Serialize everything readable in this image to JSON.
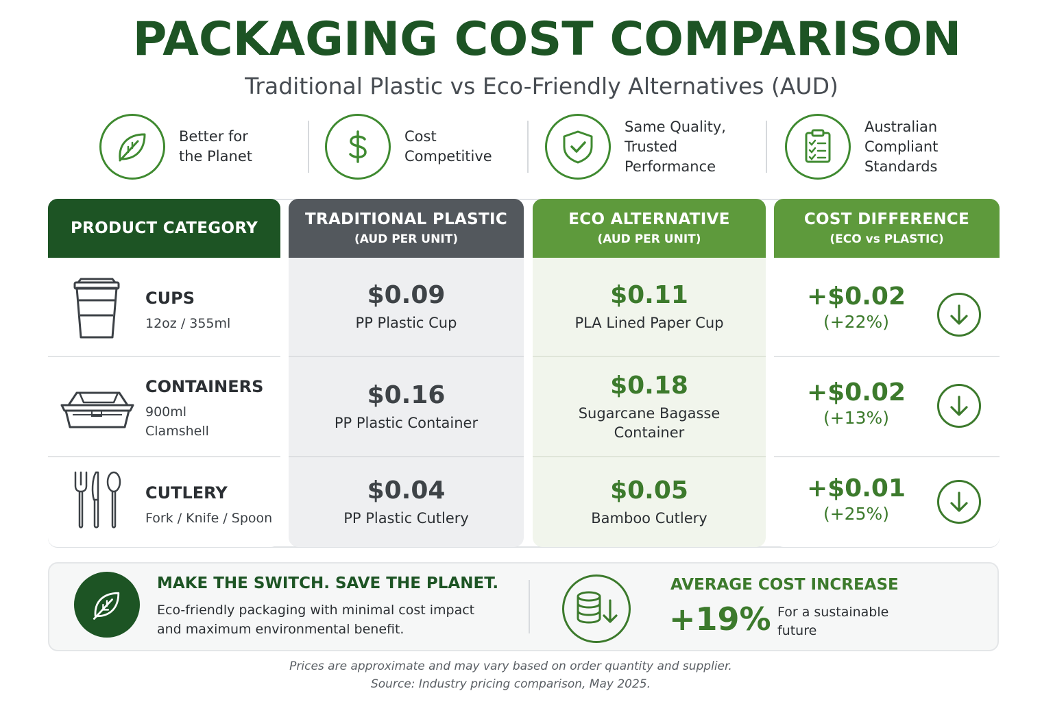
{
  "title": "PACKAGING COST COMPARISON",
  "subtitle": "Traditional Plastic vs Eco-Friendly Alternatives (AUD)",
  "features": [
    {
      "icon": "leaf-icon",
      "line1": "Better for",
      "line2": "the Planet",
      "line3": ""
    },
    {
      "icon": "dollar-icon",
      "line1": "Cost",
      "line2": "Competitive",
      "line3": ""
    },
    {
      "icon": "shield-check-icon",
      "line1": "Same Quality,",
      "line2": "Trusted",
      "line3": "Performance"
    },
    {
      "icon": "checklist-icon",
      "line1": "Australian",
      "line2": "Compliant",
      "line3": "Standards"
    }
  ],
  "columns": {
    "category": {
      "title": "PRODUCT CATEGORY"
    },
    "plastic": {
      "title": "TRADITIONAL PLASTIC",
      "sub": "(AUD PER UNIT)"
    },
    "eco": {
      "title": "ECO ALTERNATIVE",
      "sub": "(AUD PER UNIT)"
    },
    "diff": {
      "title": "COST DIFFERENCE",
      "sub": "(ECO vs PLASTIC)"
    }
  },
  "rows": [
    {
      "icon": "cup-icon",
      "name": "CUPS",
      "sub1": "12oz / 355ml",
      "sub2": "",
      "plastic_price": "$0.09",
      "plastic_desc": "PP Plastic Cup",
      "eco_price": "$0.11",
      "eco_desc1": "PLA Lined Paper Cup",
      "eco_desc2": "",
      "diff_value": "+$0.02",
      "diff_pct": "(+22%)"
    },
    {
      "icon": "clamshell-container-icon",
      "name": "CONTAINERS",
      "sub1": "900ml",
      "sub2": "Clamshell",
      "plastic_price": "$0.16",
      "plastic_desc": "PP Plastic Container",
      "eco_price": "$0.18",
      "eco_desc1": "Sugarcane Bagasse",
      "eco_desc2": "Container",
      "diff_value": "+$0.02",
      "diff_pct": "(+13%)"
    },
    {
      "icon": "cutlery-icon",
      "name": "CUTLERY",
      "sub1": "Fork / Knife / Spoon",
      "sub2": "",
      "plastic_price": "$0.04",
      "plastic_desc": "PP Plastic Cutlery",
      "eco_price": "$0.05",
      "eco_desc1": "Bamboo Cutlery",
      "eco_desc2": "",
      "diff_value": "+$0.01",
      "diff_pct": "(+25%)"
    }
  ],
  "footer": {
    "switch_title": "MAKE THE SWITCH. SAVE THE PLANET.",
    "switch_line1": "Eco-friendly packaging with minimal cost impact",
    "switch_line2": "and maximum environmental benefit.",
    "avg_title": "AVERAGE COST INCREASE",
    "avg_value": "+19%",
    "avg_note1": "For a sustainable",
    "avg_note2": "future"
  },
  "notes": {
    "line1": "Prices are approximate and may vary based on order quantity and supplier.",
    "line2": "Source: Industry pricing comparison, May 2025."
  },
  "colors": {
    "dark_green": "#1d5424",
    "green": "#5e9a3c",
    "accent_green": "#3c7a2c",
    "gray_header": "#53585d",
    "plastic_bg": "#eeeff1",
    "eco_bg": "#f1f5ec"
  }
}
